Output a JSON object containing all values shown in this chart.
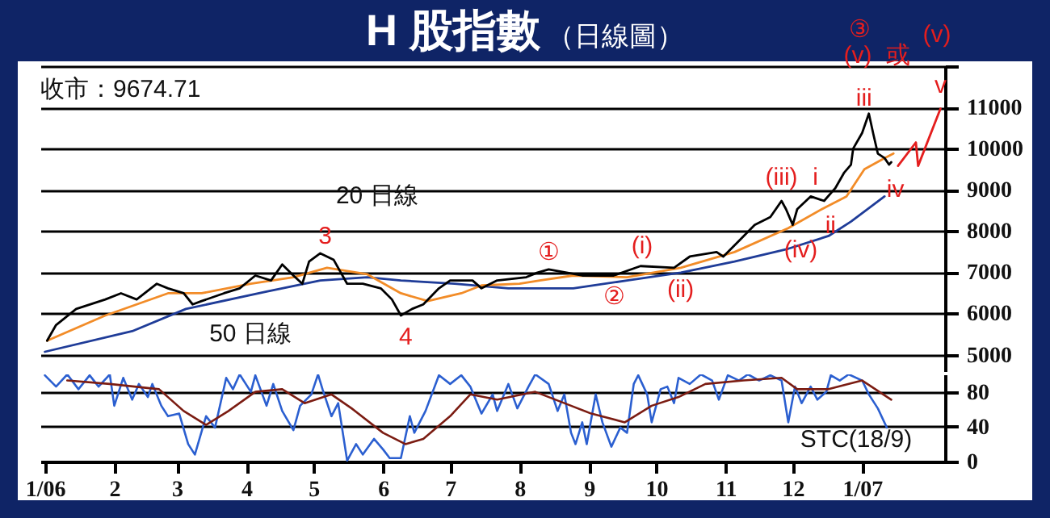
{
  "chart_data": [
    {
      "type": "line",
      "title": "H 股指數",
      "subtitle": "（日線圖）",
      "xlim": [
        "2005-12-30",
        "2007-02-07"
      ],
      "ylim": [
        4600,
        12000
      ],
      "yticks": [
        5000,
        6000,
        7000,
        8000,
        9000,
        10000,
        11000,
        {
          "value": 12000,
          "label": null
        }
      ],
      "grid": "y",
      "tick_labels": "y",
      "series": [
        {
          "color": "#1f3c98",
          "x": [
            "2006-01-01",
            "2006-02-09",
            "2006-03-05",
            "2006-04-10",
            "2006-05-04",
            "2006-05-25",
            "2006-06-09",
            "2006-07-03",
            "2006-07-27",
            "2006-08-25",
            "2006-09-18",
            "2006-10-12",
            "2006-11-05",
            "2006-11-29",
            "2006-12-17",
            "2006-12-27",
            "2007-01-11"
          ],
          "values": [
            5070,
            5570,
            6110,
            6530,
            6800,
            6880,
            6800,
            6720,
            6610,
            6610,
            6800,
            6990,
            7260,
            7570,
            7880,
            8230,
            8840
          ]
        },
        {
          "color": "#f28c28",
          "x": [
            "2006-01-02",
            "2006-01-28",
            "2006-02-25",
            "2006-03-12",
            "2006-04-03",
            "2006-04-22",
            "2006-05-07",
            "2006-05-25",
            "2006-06-09",
            "2006-06-21",
            "2006-07-06",
            "2006-07-15",
            "2006-08-01",
            "2006-08-10",
            "2006-08-25",
            "2006-09-18",
            "2006-10-12",
            "2006-11-05",
            "2006-11-29",
            "2006-12-14",
            "2006-12-25",
            "2007-01-02",
            "2007-01-11",
            "2007-01-15"
          ],
          "values": [
            5340,
            5950,
            6490,
            6490,
            6720,
            6880,
            7110,
            6950,
            6490,
            6300,
            6490,
            6680,
            6720,
            6800,
            6920,
            6880,
            7110,
            7490,
            8070,
            8530,
            8840,
            9500,
            9770,
            9880
          ]
        },
        {
          "color": "#000000",
          "x": [
            "2006-01-02",
            "2006-01-06",
            "2006-01-15",
            "2006-01-28",
            "2006-02-04",
            "2006-02-11",
            "2006-02-20",
            "2006-02-25",
            "2006-03-04",
            "2006-03-08",
            "2006-03-12",
            "2006-03-22",
            "2006-03-29",
            "2006-04-05",
            "2006-04-12",
            "2006-04-17",
            "2006-04-22",
            "2006-04-26",
            "2006-04-29",
            "2006-05-04",
            "2006-05-10",
            "2006-05-16",
            "2006-05-23",
            "2006-05-31",
            "2006-06-05",
            "2006-06-09",
            "2006-06-14",
            "2006-06-19",
            "2006-06-26",
            "2006-07-01",
            "2006-07-11",
            "2006-07-15",
            "2006-07-22",
            "2006-08-04",
            "2006-08-09",
            "2006-08-14",
            "2006-08-29",
            "2006-09-12",
            "2006-09-24",
            "2006-10-09",
            "2006-10-16",
            "2006-10-28",
            "2006-10-31",
            "2006-11-07",
            "2006-11-14",
            "2006-11-21",
            "2006-11-26",
            "2006-11-28",
            "2006-12-01",
            "2006-12-03",
            "2006-12-09",
            "2006-12-15",
            "2006-12-20",
            "2006-12-24",
            "2006-12-27",
            "2006-12-28",
            "2007-01-01",
            "2007-01-04",
            "2007-01-06",
            "2007-01-08",
            "2007-01-11",
            "2007-01-13",
            "2007-01-14"
          ],
          "values": [
            5340,
            5720,
            6110,
            6340,
            6490,
            6340,
            6720,
            6610,
            6490,
            6220,
            6300,
            6490,
            6610,
            6920,
            6800,
            7190,
            6920,
            6720,
            7260,
            7460,
            7300,
            6720,
            6720,
            6610,
            6340,
            5950,
            6110,
            6220,
            6610,
            6800,
            6800,
            6610,
            6800,
            6880,
            6990,
            7070,
            6920,
            6920,
            7150,
            7110,
            7380,
            7490,
            7380,
            7760,
            8150,
            8340,
            8730,
            8530,
            8150,
            8530,
            8840,
            8730,
            9040,
            9420,
            9610,
            10000,
            10380,
            10850,
            10350,
            9880,
            9770,
            9610,
            9670
          ]
        },
        {
          "color": "#e41e1e",
          "x": [
            "2007-01-17",
            "2007-01-25",
            "2007-01-26",
            "2007-02-05"
          ],
          "values": [
            9580,
            10150,
            9580,
            10970
          ]
        }
      ],
      "annotations": [
        "收市：9674.71",
        {
          "text": "20 日線",
          "x": "2006-05-25",
          "y": 6950
        },
        {
          "text": "50 日線",
          "x": "2006-04-10",
          "y": 6530
        },
        {
          "text": "3",
          "x": "2006-05-04",
          "y": 7460
        },
        {
          "text": "4",
          "x": "2006-06-09",
          "y": 5950
        },
        {
          "text": "①",
          "x": "2006-08-14",
          "y": 7070
        },
        {
          "text": "②",
          "x": "2006-09-12",
          "y": 6920
        },
        {
          "text": "(i)",
          "x": "2006-09-24",
          "y": 7150
        },
        {
          "text": "(ii)",
          "x": "2006-10-09",
          "y": 7110
        },
        {
          "text": "(iii)",
          "x": "2006-11-26",
          "y": 8730
        },
        {
          "text": "i",
          "x": "2006-12-09",
          "y": 8840
        },
        {
          "text": "(iv)",
          "x": "2006-12-01",
          "y": 8150
        },
        {
          "text": "ii",
          "x": "2006-12-15",
          "y": 8730
        },
        {
          "text": "iii",
          "x": "2007-01-04",
          "y": 10850
        },
        {
          "text": "iv",
          "x": "2007-01-13",
          "y": 9610
        },
        {
          "text": "v",
          "x": "2007-02-05",
          "y": 10970
        },
        "③",
        "(v)",
        "或",
        "(v)"
      ]
    },
    {
      "type": "line",
      "xlim": [
        "2005-12-30",
        "2007-02-07"
      ],
      "xticks": [
        {
          "value": "2006-01-01",
          "label": "1/06"
        },
        {
          "value": "2006-02-01",
          "label": "2"
        },
        {
          "value": "2006-03-01",
          "label": "3"
        },
        {
          "value": "2006-04-01",
          "label": "4"
        },
        {
          "value": "2006-05-01",
          "label": "5"
        },
        {
          "value": "2006-06-01",
          "label": "6"
        },
        {
          "value": "2006-07-01",
          "label": "7"
        },
        {
          "value": "2006-08-01",
          "label": "8"
        },
        {
          "value": "2006-09-01",
          "label": "9"
        },
        {
          "value": "2006-10-01",
          "label": "10"
        },
        {
          "value": "2006-11-01",
          "label": "11"
        },
        {
          "value": "2006-12-01",
          "label": "12"
        },
        {
          "value": "2007-01-01",
          "label": "1/07"
        }
      ],
      "ylim": [
        0,
        100
      ],
      "yticks": [
        0,
        40,
        80
      ],
      "grid": "y",
      "series": [
        {
          "color": "#2b5fd0",
          "x": [
            "2006-01-01",
            "2006-01-06",
            "2006-01-11",
            "2006-01-16",
            "2006-01-21",
            "2006-01-25",
            "2006-01-30",
            "2006-02-01",
            "2006-02-05",
            "2006-02-09",
            "2006-02-12",
            "2006-02-16",
            "2006-02-18",
            "2006-02-22",
            "2006-02-25",
            "2006-03-02",
            "2006-03-06",
            "2006-03-09",
            "2006-03-14",
            "2006-03-18",
            "2006-03-23",
            "2006-03-26",
            "2006-03-29",
            "2006-04-03",
            "2006-04-05",
            "2006-04-10",
            "2006-04-13",
            "2006-04-17",
            "2006-04-22",
            "2006-04-25",
            "2006-04-30",
            "2006-05-03",
            "2006-05-05",
            "2006-05-09",
            "2006-05-12",
            "2006-05-16",
            "2006-05-20",
            "2006-05-23",
            "2006-05-28",
            "2006-06-01",
            "2006-06-04",
            "2006-06-09",
            "2006-06-13",
            "2006-06-15",
            "2006-06-20",
            "2006-06-26",
            "2006-07-01",
            "2006-07-06",
            "2006-07-10",
            "2006-07-15",
            "2006-07-20",
            "2006-07-22",
            "2006-07-27",
            "2006-07-31",
            "2006-08-05",
            "2006-08-08",
            "2006-08-14",
            "2006-08-18",
            "2006-08-21",
            "2006-08-24",
            "2006-08-26",
            "2006-08-29",
            "2006-08-31",
            "2006-09-04",
            "2006-09-07",
            "2006-09-11",
            "2006-09-15",
            "2006-09-18",
            "2006-09-21",
            "2006-09-23",
            "2006-09-27",
            "2006-09-29",
            "2006-10-03",
            "2006-10-06",
            "2006-10-09",
            "2006-10-11",
            "2006-10-16",
            "2006-10-21",
            "2006-10-26",
            "2006-10-29",
            "2006-11-02",
            "2006-11-07",
            "2006-11-11",
            "2006-11-16",
            "2006-11-21",
            "2006-11-26",
            "2006-11-29",
            "2006-12-02",
            "2006-12-05",
            "2006-12-09",
            "2006-12-12",
            "2006-12-16",
            "2006-12-18",
            "2006-12-22",
            "2006-12-26",
            "2007-01-01",
            "2007-01-04",
            "2007-01-08",
            "2007-01-12"
          ],
          "values": [
            99,
            86,
            100,
            83,
            99,
            86,
            100,
            64,
            96,
            71,
            89,
            74,
            89,
            64,
            52,
            55,
            20,
            8,
            52,
            39,
            96,
            83,
            100,
            80,
            99,
            64,
            89,
            58,
            36,
            64,
            77,
            100,
            83,
            52,
            67,
            1,
            20,
            8,
            26,
            14,
            4,
            4,
            52,
            33,
            58,
            99,
            89,
            99,
            86,
            55,
            77,
            58,
            89,
            61,
            86,
            100,
            89,
            58,
            77,
            33,
            20,
            45,
            20,
            77,
            45,
            17,
            39,
            33,
            89,
            99,
            77,
            45,
            83,
            86,
            67,
            96,
            89,
            100,
            93,
            71,
            99,
            93,
            100,
            93,
            99,
            93,
            45,
            86,
            67,
            86,
            71,
            80,
            99,
            93,
            100,
            93,
            77,
            61,
            39
          ]
        },
        {
          "color": "#7b1c12",
          "x": [
            "2006-01-11",
            "2006-01-30",
            "2006-02-21",
            "2006-03-04",
            "2006-03-14",
            "2006-03-24",
            "2006-04-05",
            "2006-04-17",
            "2006-04-27",
            "2006-05-09",
            "2006-05-18",
            "2006-06-01",
            "2006-06-11",
            "2006-06-19",
            "2006-07-01",
            "2006-07-10",
            "2006-07-22",
            "2006-08-08",
            "2006-08-24",
            "2006-09-02",
            "2006-09-17",
            "2006-09-29",
            "2006-10-11",
            "2006-10-23",
            "2006-11-09",
            "2006-11-26",
            "2006-12-03",
            "2006-12-17",
            "2007-01-01",
            "2007-01-14"
          ],
          "values": [
            93,
            89,
            83,
            58,
            42,
            58,
            80,
            83,
            67,
            77,
            61,
            33,
            20,
            26,
            52,
            77,
            71,
            80,
            64,
            55,
            45,
            64,
            74,
            89,
            93,
            96,
            83,
            83,
            93,
            71
          ]
        }
      ],
      "annotations": [
        "STC(18/9)"
      ]
    }
  ]
}
